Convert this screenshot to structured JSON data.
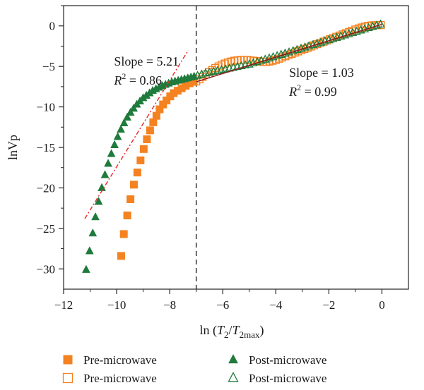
{
  "chart_data": {
    "type": "scatter",
    "xlabel": "ln (T2/T2max)",
    "xlabel_parts": {
      "prefix": "ln (",
      "t1": "T",
      "s1": "2",
      "slash": "/",
      "t2": "T",
      "s2": "2max",
      "suffix": ")"
    },
    "ylabel": "lnVp",
    "xlim": [
      -12,
      1
    ],
    "ylim": [
      -32.5,
      2.5
    ],
    "xticks": [
      -12,
      -10,
      -8,
      -6,
      -4,
      -2,
      0
    ],
    "xtick_labels": [
      "−12",
      "−10",
      "−8",
      "−6",
      "−4",
      "−2",
      "0"
    ],
    "yticks": [
      0,
      -5,
      -10,
      -15,
      -20,
      -25,
      -30
    ],
    "ytick_labels": [
      "0",
      "−5",
      "−10",
      "−15",
      "−20",
      "−25",
      "−30"
    ],
    "vertical_line_x": -7,
    "annotations": [
      {
        "slope_text": "Slope = 5.21",
        "r2_prefix": "R",
        "r2_sup": "2",
        "r2_value": " = 0.86",
        "x": -10.1,
        "y": -4.9
      },
      {
        "slope_text": "Slope = 1.03",
        "r2_prefix": "R",
        "r2_sup": "2",
        "r2_value": " = 0.99",
        "x": -3.5,
        "y": -6.3
      }
    ],
    "fit_lines": [
      {
        "name": "fit-left",
        "color": "#e8312f",
        "x": [
          -11.2,
          -7.3
        ],
        "y": [
          -23.8,
          -3.0
        ]
      },
      {
        "name": "fit-right",
        "color": "#8b1a1a",
        "x": [
          -7.0,
          0.0
        ],
        "y": [
          -6.9,
          0.2
        ]
      }
    ],
    "series": [
      {
        "name": "Pre-microwave",
        "marker": "square",
        "filled": true,
        "color": "#f58220",
        "x": [
          -9.83,
          -9.73,
          -9.6,
          -9.48,
          -9.35,
          -9.22,
          -9.1,
          -8.98,
          -8.86,
          -8.74,
          -8.62,
          -8.5,
          -8.38,
          -8.25,
          -8.12,
          -7.98,
          -7.85,
          -7.7,
          -7.55,
          -7.4,
          -7.25,
          -7.1
        ],
        "y": [
          -28.4,
          -25.7,
          -23.4,
          -21.4,
          -19.6,
          -18.1,
          -16.6,
          -15.2,
          -14.0,
          -12.9,
          -11.9,
          -11.1,
          -10.3,
          -9.7,
          -9.2,
          -8.7,
          -8.3,
          -8.0,
          -7.7,
          -7.4,
          -7.1,
          -6.9
        ]
      },
      {
        "name": "Pre-microwave",
        "marker": "square",
        "filled": false,
        "color": "#f58220",
        "x": [
          -7.0,
          -6.88,
          -6.76,
          -6.64,
          -6.52,
          -6.4,
          -6.28,
          -6.16,
          -6.04,
          -5.92,
          -5.8,
          -5.68,
          -5.56,
          -5.44,
          -5.32,
          -5.2,
          -5.08,
          -4.96,
          -4.84,
          -4.72,
          -4.6,
          -4.48,
          -4.36,
          -4.24,
          -4.12,
          -4.0,
          -3.88,
          -3.76,
          -3.64,
          -3.52,
          -3.4,
          -3.28,
          -3.16,
          -3.04,
          -2.92,
          -2.8,
          -2.68,
          -2.56,
          -2.44,
          -2.32,
          -2.2,
          -2.08,
          -1.96,
          -1.84,
          -1.72,
          -1.6,
          -1.48,
          -1.36,
          -1.24,
          -1.12,
          -1.0,
          -0.88,
          -0.76,
          -0.64,
          -0.52,
          -0.4,
          -0.28,
          -0.16,
          -0.04
        ],
        "y": [
          -6.85,
          -6.6,
          -6.3,
          -6.0,
          -5.7,
          -5.45,
          -5.2,
          -5.0,
          -4.8,
          -4.65,
          -4.5,
          -4.4,
          -4.3,
          -4.25,
          -4.2,
          -4.2,
          -4.2,
          -4.25,
          -4.3,
          -4.35,
          -4.4,
          -4.45,
          -4.45,
          -4.4,
          -4.3,
          -4.2,
          -4.05,
          -3.9,
          -3.75,
          -3.6,
          -3.45,
          -3.3,
          -3.15,
          -3.0,
          -2.85,
          -2.7,
          -2.55,
          -2.4,
          -2.25,
          -2.1,
          -1.95,
          -1.8,
          -1.65,
          -1.5,
          -1.35,
          -1.2,
          -1.05,
          -0.9,
          -0.75,
          -0.6,
          -0.45,
          -0.32,
          -0.2,
          -0.08,
          0.0,
          0.05,
          0.08,
          0.1,
          0.1
        ]
      },
      {
        "name": "Post-microwave",
        "marker": "triangle",
        "filled": true,
        "color": "#1f7a3c",
        "x": [
          -11.15,
          -11.02,
          -10.9,
          -10.8,
          -10.68,
          -10.56,
          -10.44,
          -10.32,
          -10.2,
          -10.08,
          -9.96,
          -9.84,
          -9.72,
          -9.6,
          -9.48,
          -9.36,
          -9.24,
          -9.12,
          -9.0,
          -8.88,
          -8.76,
          -8.64,
          -8.52,
          -8.4,
          -8.28,
          -8.16,
          -8.04,
          -7.92,
          -7.8,
          -7.68,
          -7.56,
          -7.44,
          -7.32,
          -7.2,
          -7.08
        ],
        "y": [
          -30.1,
          -27.8,
          -25.6,
          -23.6,
          -21.7,
          -20.0,
          -18.4,
          -17.0,
          -15.8,
          -14.7,
          -13.7,
          -12.8,
          -12.0,
          -11.3,
          -10.7,
          -10.2,
          -9.7,
          -9.3,
          -8.9,
          -8.6,
          -8.3,
          -8.0,
          -7.8,
          -7.6,
          -7.4,
          -7.25,
          -7.1,
          -6.95,
          -6.85,
          -6.75,
          -6.65,
          -6.55,
          -6.45,
          -6.35,
          -6.25
        ]
      },
      {
        "name": "Post-microwave",
        "marker": "triangle",
        "filled": false,
        "color": "#1f7a3c",
        "x": [
          -6.95,
          -6.8,
          -6.65,
          -6.5,
          -6.35,
          -6.2,
          -6.05,
          -5.9,
          -5.75,
          -5.6,
          -5.45,
          -5.3,
          -5.15,
          -5.0,
          -4.85,
          -4.7,
          -4.55,
          -4.4,
          -4.25,
          -4.1,
          -3.95,
          -3.8,
          -3.65,
          -3.5,
          -3.35,
          -3.2,
          -3.05,
          -2.9,
          -2.75,
          -2.6,
          -2.45,
          -2.3,
          -2.15,
          -2.0,
          -1.85,
          -1.7,
          -1.55,
          -1.4,
          -1.25,
          -1.1,
          -0.95,
          -0.8,
          -0.65,
          -0.5,
          -0.35,
          -0.2,
          -0.05
        ],
        "y": [
          -6.15,
          -6.0,
          -5.85,
          -5.75,
          -5.65,
          -5.55,
          -5.45,
          -5.35,
          -5.25,
          -5.15,
          -5.05,
          -4.95,
          -4.85,
          -4.75,
          -4.6,
          -4.45,
          -4.3,
          -4.15,
          -4.0,
          -3.85,
          -3.7,
          -3.55,
          -3.4,
          -3.25,
          -3.1,
          -2.95,
          -2.8,
          -2.65,
          -2.5,
          -2.35,
          -2.2,
          -2.05,
          -1.9,
          -1.75,
          -1.6,
          -1.45,
          -1.3,
          -1.15,
          -1.0,
          -0.85,
          -0.7,
          -0.55,
          -0.4,
          -0.25,
          -0.1,
          0.05,
          0.2
        ]
      }
    ],
    "legend": [
      {
        "label": "Pre-microwave",
        "marker": "square",
        "filled": true,
        "color": "#f58220"
      },
      {
        "label": "Pre-microwave",
        "marker": "square",
        "filled": false,
        "color": "#f58220"
      },
      {
        "label": "Post-microwave",
        "marker": "triangle",
        "filled": true,
        "color": "#1f7a3c"
      },
      {
        "label": "Post-microwave",
        "marker": "triangle",
        "filled": false,
        "color": "#1f7a3c"
      }
    ]
  }
}
